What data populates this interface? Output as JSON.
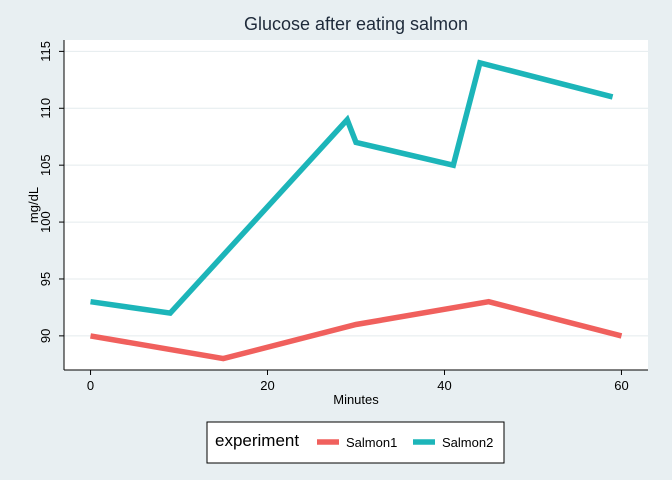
{
  "chart_data": {
    "type": "line",
    "title": "Glucose after eating salmon",
    "xlabel": "Minutes",
    "ylabel": "mg/dL",
    "xlim": [
      -3,
      63
    ],
    "ylim": [
      87,
      116
    ],
    "xticks": [
      0,
      20,
      40,
      60
    ],
    "yticks": [
      90,
      95,
      100,
      105,
      110,
      115
    ],
    "grid": true,
    "legend_position": "bottom",
    "legend_title": "experiment",
    "series": [
      {
        "name": "Salmon1",
        "color": "#f0605d",
        "points": [
          [
            0,
            90
          ],
          [
            15,
            88
          ],
          [
            30,
            91
          ],
          [
            45,
            93
          ],
          [
            60,
            90
          ]
        ]
      },
      {
        "name": "Salmon2",
        "color": "#1cb5b9",
        "points": [
          [
            0,
            93
          ],
          [
            9,
            92
          ],
          [
            29,
            109
          ],
          [
            30,
            107
          ],
          [
            41,
            105
          ],
          [
            44,
            114
          ],
          [
            59,
            111
          ]
        ]
      }
    ]
  }
}
